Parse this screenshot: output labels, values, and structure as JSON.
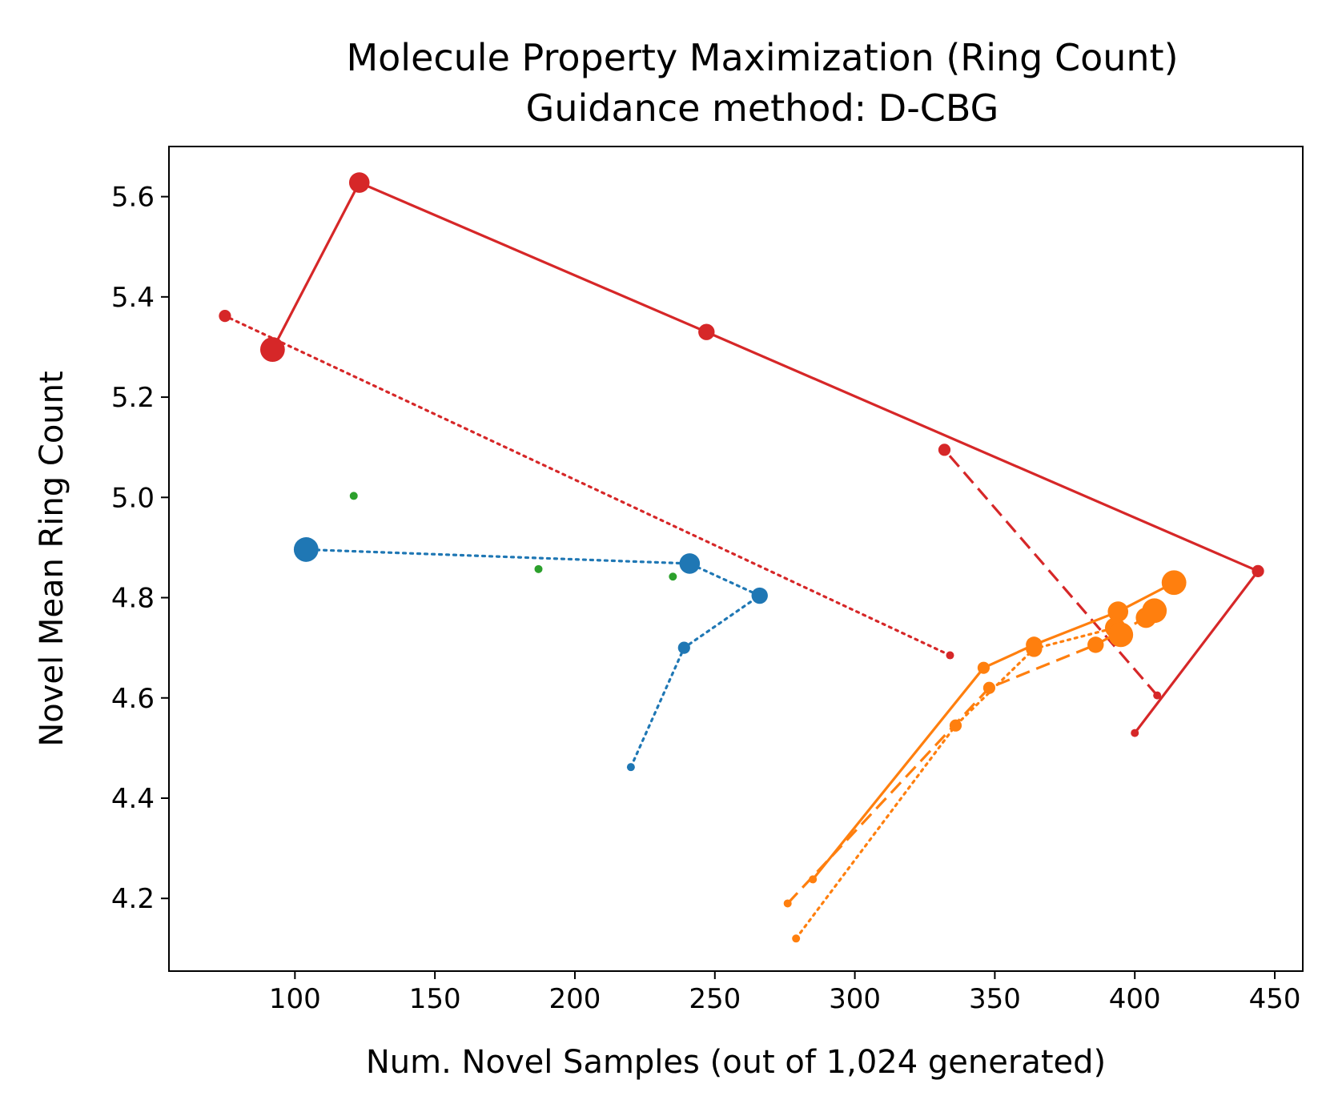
{
  "chart_data": {
    "type": "scatter",
    "title": [
      "Molecule Property Maximization (Ring Count)",
      "Guidance method: D-CBG"
    ],
    "xlabel": "Num. Novel Samples (out of 1,024 generated)",
    "ylabel": "Novel Mean Ring Count",
    "xlim": [
      55,
      460
    ],
    "ylim": [
      4.055,
      5.7
    ],
    "xticks": [
      100,
      150,
      200,
      250,
      300,
      350,
      400,
      450
    ],
    "yticks": [
      4.2,
      4.4,
      4.6,
      4.8,
      5.0,
      5.2,
      5.4,
      5.6
    ],
    "grid": false,
    "legend": "none",
    "marker_sizes_note": "point size grows along each series",
    "series": [
      {
        "name": "red-solid",
        "color": "#d62728",
        "linestyle": "solid",
        "points": [
          {
            "x": 400,
            "y": 4.53,
            "size": 1
          },
          {
            "x": 444,
            "y": 4.853,
            "size": 2
          },
          {
            "x": 247,
            "y": 5.33,
            "size": 3
          },
          {
            "x": 123,
            "y": 5.628,
            "size": 4
          },
          {
            "x": 92,
            "y": 5.295,
            "size": 5
          }
        ]
      },
      {
        "name": "red-dashed",
        "color": "#d62728",
        "linestyle": "dashed",
        "points": [
          {
            "x": 408,
            "y": 4.605,
            "size": 1
          },
          {
            "x": 332,
            "y": 5.095,
            "size": 2
          }
        ]
      },
      {
        "name": "red-dotted",
        "color": "#d62728",
        "linestyle": "dotted",
        "points": [
          {
            "x": 334,
            "y": 4.685,
            "size": 1
          },
          {
            "x": 75,
            "y": 5.362,
            "size": 2
          }
        ]
      },
      {
        "name": "blue-dotted",
        "color": "#1f77b4",
        "linestyle": "dotted",
        "points": [
          {
            "x": 220,
            "y": 4.462,
            "size": 1
          },
          {
            "x": 239,
            "y": 4.7,
            "size": 2
          },
          {
            "x": 266,
            "y": 4.804,
            "size": 3
          },
          {
            "x": 241,
            "y": 4.868,
            "size": 4
          },
          {
            "x": 104,
            "y": 4.896,
            "size": 5
          }
        ]
      },
      {
        "name": "green-markers",
        "color": "#2ca02c",
        "linestyle": "none",
        "points": [
          {
            "x": 121,
            "y": 5.003,
            "size": 1
          },
          {
            "x": 187,
            "y": 4.857,
            "size": 1
          },
          {
            "x": 235,
            "y": 4.842,
            "size": 1
          }
        ]
      },
      {
        "name": "orange-solid",
        "color": "#ff7f0e",
        "linestyle": "solid",
        "points": [
          {
            "x": 285,
            "y": 4.238,
            "size": 1
          },
          {
            "x": 346,
            "y": 4.66,
            "size": 2
          },
          {
            "x": 364,
            "y": 4.706,
            "size": 3
          },
          {
            "x": 394,
            "y": 4.772,
            "size": 4
          },
          {
            "x": 414,
            "y": 4.83,
            "size": 5
          }
        ]
      },
      {
        "name": "orange-dashed",
        "color": "#ff7f0e",
        "linestyle": "dashed",
        "points": [
          {
            "x": 276,
            "y": 4.19,
            "size": 1
          },
          {
            "x": 348,
            "y": 4.62,
            "size": 2
          },
          {
            "x": 386,
            "y": 4.706,
            "size": 3
          },
          {
            "x": 404,
            "y": 4.76,
            "size": 4
          },
          {
            "x": 407,
            "y": 4.774,
            "size": 5
          }
        ]
      },
      {
        "name": "orange-dotted",
        "color": "#ff7f0e",
        "linestyle": "dotted",
        "points": [
          {
            "x": 279,
            "y": 4.12,
            "size": 1
          },
          {
            "x": 336,
            "y": 4.545,
            "size": 2
          },
          {
            "x": 364,
            "y": 4.698,
            "size": 3
          },
          {
            "x": 393,
            "y": 4.74,
            "size": 4
          },
          {
            "x": 395,
            "y": 4.726,
            "size": 5
          }
        ]
      }
    ]
  }
}
